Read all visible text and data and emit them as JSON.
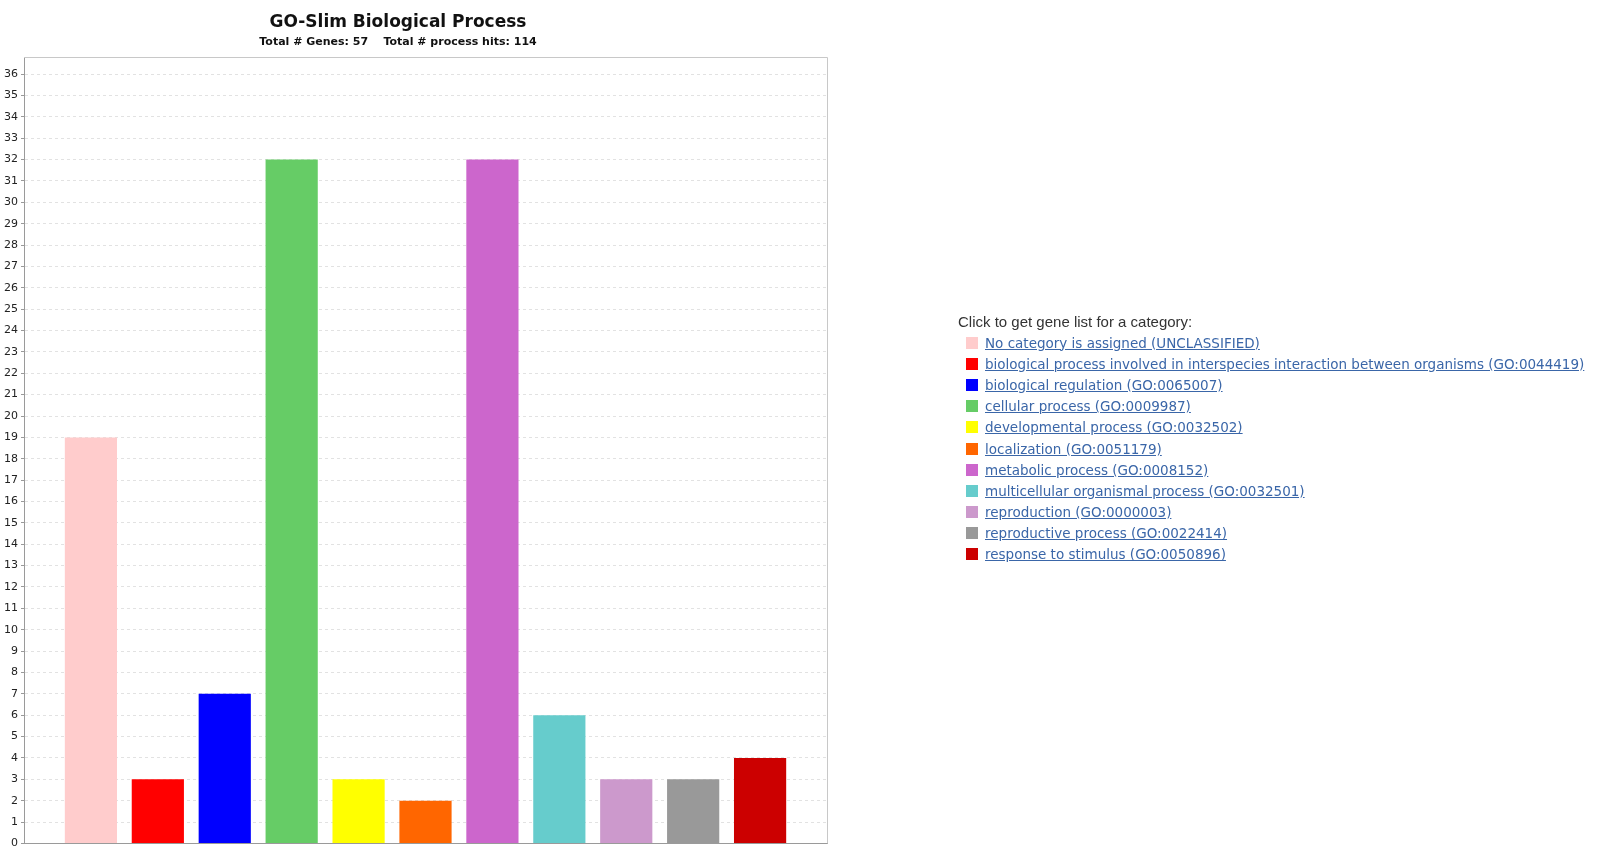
{
  "chart_data": {
    "type": "bar",
    "title": "GO-Slim Biological Process",
    "subtitle": "Total # Genes: 57    Total # process hits: 114",
    "legend_title": "Click to get gene list for a category:",
    "categories": [
      null,
      null,
      null,
      null,
      null,
      null,
      null,
      null,
      null,
      null,
      null
    ],
    "series": [
      {
        "name": "No category is assigned (UNCLASSIFIED)",
        "color": "#ffcccc",
        "values": [
          19,
          null,
          null,
          null,
          null,
          null,
          null,
          null,
          null,
          null,
          null
        ]
      },
      {
        "name": "biological process involved in interspecies interaction between organisms (GO:0044419)",
        "color": "#ff0000",
        "values": [
          null,
          3,
          null,
          null,
          null,
          null,
          null,
          null,
          null,
          null,
          null
        ]
      },
      {
        "name": "biological regulation (GO:0065007)",
        "color": "#0000ff",
        "values": [
          null,
          null,
          7,
          null,
          null,
          null,
          null,
          null,
          null,
          null,
          null
        ]
      },
      {
        "name": "cellular process (GO:0009987)",
        "color": "#66cc66",
        "values": [
          null,
          null,
          null,
          32,
          null,
          null,
          null,
          null,
          null,
          null,
          null
        ]
      },
      {
        "name": "developmental process (GO:0032502)",
        "color": "#ffff00",
        "values": [
          null,
          null,
          null,
          null,
          3,
          null,
          null,
          null,
          null,
          null,
          null
        ]
      },
      {
        "name": "localization (GO:0051179)",
        "color": "#ff6600",
        "values": [
          null,
          null,
          null,
          null,
          null,
          2,
          null,
          null,
          null,
          null,
          null
        ]
      },
      {
        "name": "metabolic process (GO:0008152)",
        "color": "#cc66cc",
        "values": [
          null,
          null,
          null,
          null,
          null,
          null,
          32,
          null,
          null,
          null,
          null
        ]
      },
      {
        "name": "multicellular organismal process (GO:0032501)",
        "color": "#66cccc",
        "values": [
          null,
          null,
          null,
          null,
          null,
          null,
          null,
          6,
          null,
          null,
          null
        ]
      },
      {
        "name": "reproduction (GO:0000003)",
        "color": "#cc99cc",
        "values": [
          null,
          null,
          null,
          null,
          null,
          null,
          null,
          null,
          3,
          null,
          null
        ]
      },
      {
        "name": "reproductive process (GO:0022414)",
        "color": "#999999",
        "values": [
          null,
          null,
          null,
          null,
          null,
          null,
          null,
          null,
          null,
          3,
          null
        ]
      },
      {
        "name": "response to stimulus (GO:0050896)",
        "color": "#cc0000",
        "values": [
          null,
          null,
          null,
          null,
          null,
          null,
          null,
          null,
          null,
          null,
          4
        ]
      }
    ],
    "ylim": [
      0,
      36.8
    ],
    "yticks": [
      0,
      1,
      2,
      3,
      4,
      5,
      6,
      7,
      8,
      9,
      10,
      11,
      12,
      13,
      14,
      15,
      16,
      17,
      18,
      19,
      20,
      21,
      22,
      23,
      24,
      25,
      26,
      27,
      28,
      29,
      30,
      31,
      32,
      33,
      34,
      35,
      36
    ],
    "grid": "y",
    "legend": "right"
  }
}
